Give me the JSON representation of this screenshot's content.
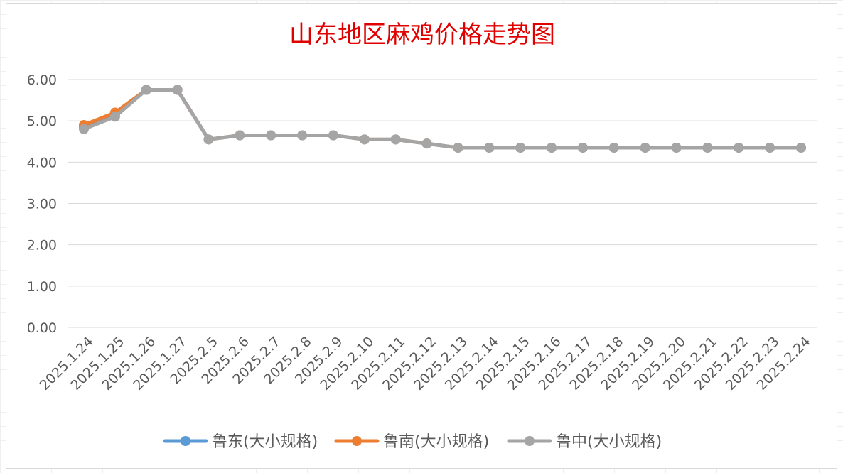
{
  "chart_data": {
    "type": "line",
    "title": "山东地区麻鸡价格走势图",
    "categories": [
      "2025.1.24",
      "2025.1.25",
      "2025.1.26",
      "2025.1.27",
      "2025.2.5",
      "2025.2.6",
      "2025.2.7",
      "2025.2.8",
      "2025.2.9",
      "2025.2.10",
      "2025.2.11",
      "2025.2.12",
      "2025.2.13",
      "2025.2.14",
      "2025.2.15",
      "2025.2.16",
      "2025.2.17",
      "2025.2.18",
      "2025.2.19",
      "2025.2.20",
      "2025.2.21",
      "2025.2.22",
      "2025.2.23",
      "2025.2.24"
    ],
    "series": [
      {
        "name": "鲁东(大小规格)",
        "color": "#5b9bd5",
        "values": [
          4.85,
          5.15,
          5.75,
          5.75,
          4.55,
          4.65,
          4.65,
          4.65,
          4.65,
          4.55,
          4.55,
          4.45,
          4.35,
          4.35,
          4.35,
          4.35,
          4.35,
          4.35,
          4.35,
          4.35,
          4.35,
          4.35,
          4.35,
          4.35
        ]
      },
      {
        "name": "鲁南(大小规格)",
        "color": "#ed7d31",
        "values": [
          4.9,
          5.2,
          5.75,
          5.75,
          4.55,
          4.65,
          4.65,
          4.65,
          4.65,
          4.55,
          4.55,
          4.45,
          4.35,
          4.35,
          4.35,
          4.35,
          4.35,
          4.35,
          4.35,
          4.35,
          4.35,
          4.35,
          4.35,
          4.35
        ]
      },
      {
        "name": "鲁中(大小规格)",
        "color": "#a5a5a5",
        "values": [
          4.8,
          5.1,
          5.75,
          5.75,
          4.55,
          4.65,
          4.65,
          4.65,
          4.65,
          4.55,
          4.55,
          4.45,
          4.35,
          4.35,
          4.35,
          4.35,
          4.35,
          4.35,
          4.35,
          4.35,
          4.35,
          4.35,
          4.35,
          4.35
        ]
      }
    ],
    "y_ticks": [
      "0.00",
      "1.00",
      "2.00",
      "3.00",
      "4.00",
      "5.00",
      "6.00"
    ],
    "ylim": [
      0,
      6
    ],
    "grid": true,
    "legend_position": "bottom",
    "xlabel": "",
    "ylabel": ""
  }
}
